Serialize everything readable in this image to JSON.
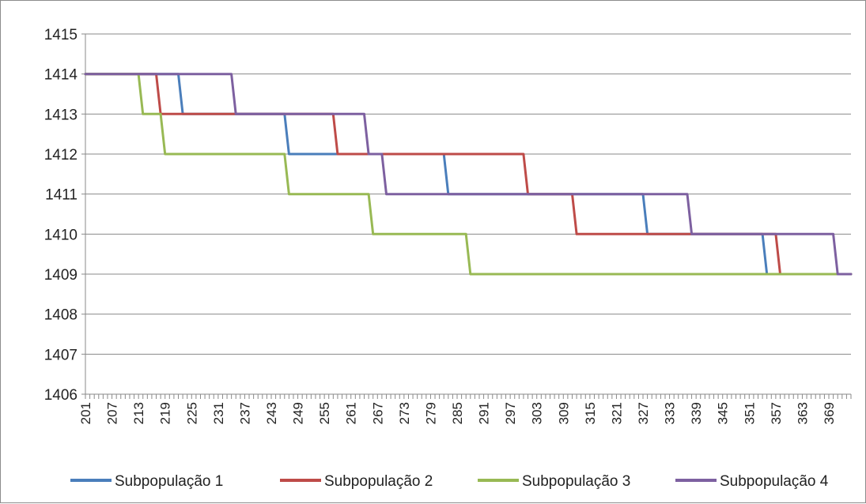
{
  "chart_data": {
    "type": "line",
    "title": "",
    "xlabel": "",
    "ylabel": "",
    "x_range": [
      201,
      374
    ],
    "x_tick_labels": [
      "201",
      "207",
      "213",
      "219",
      "225",
      "231",
      "237",
      "243",
      "249",
      "255",
      "261",
      "267",
      "273",
      "279",
      "285",
      "291",
      "297",
      "303",
      "309",
      "315",
      "321",
      "327",
      "333",
      "339",
      "345",
      "351",
      "357",
      "363",
      "369"
    ],
    "x_tick_values": [
      201,
      207,
      213,
      219,
      225,
      231,
      237,
      243,
      249,
      255,
      261,
      267,
      273,
      279,
      285,
      291,
      297,
      303,
      309,
      315,
      321,
      327,
      333,
      339,
      345,
      351,
      357,
      363,
      369
    ],
    "y_tick_labels": [
      "1406",
      "1407",
      "1408",
      "1409",
      "1410",
      "1411",
      "1412",
      "1413",
      "1414",
      "1415"
    ],
    "ylim": [
      1406,
      1415
    ],
    "grid": "horizontal",
    "legend_position": "bottom",
    "series": [
      {
        "name": "Subpopulação 1",
        "color": "#4a7ebb",
        "points": [
          [
            201,
            1414
          ],
          [
            222,
            1414
          ],
          [
            223,
            1413
          ],
          [
            238,
            1413
          ],
          [
            246,
            1413
          ],
          [
            247,
            1412
          ],
          [
            258,
            1412
          ],
          [
            282,
            1412
          ],
          [
            283,
            1411
          ],
          [
            327,
            1411
          ],
          [
            328,
            1410
          ],
          [
            354,
            1410
          ],
          [
            355,
            1409
          ],
          [
            374,
            1409
          ]
        ]
      },
      {
        "name": "Subpopulação 2",
        "color": "#be4b48",
        "points": [
          [
            201,
            1414
          ],
          [
            217,
            1414
          ],
          [
            218,
            1413
          ],
          [
            257,
            1413
          ],
          [
            258,
            1412
          ],
          [
            300,
            1412
          ],
          [
            301,
            1411
          ],
          [
            311,
            1411
          ],
          [
            312,
            1410
          ],
          [
            357,
            1410
          ],
          [
            358,
            1409
          ],
          [
            374,
            1409
          ]
        ]
      },
      {
        "name": "Subpopulação 3",
        "color": "#98b954",
        "points": [
          [
            201,
            1414
          ],
          [
            213,
            1414
          ],
          [
            214,
            1413
          ],
          [
            218,
            1413
          ],
          [
            219,
            1412
          ],
          [
            246,
            1412
          ],
          [
            247,
            1411
          ],
          [
            265,
            1411
          ],
          [
            266,
            1410
          ],
          [
            287,
            1410
          ],
          [
            288,
            1409
          ],
          [
            374,
            1409
          ]
        ]
      },
      {
        "name": "Subpopulação 4",
        "color": "#7d60a0",
        "points": [
          [
            201,
            1414
          ],
          [
            234,
            1414
          ],
          [
            235,
            1413
          ],
          [
            264,
            1413
          ],
          [
            265,
            1412
          ],
          [
            268,
            1412
          ],
          [
            269,
            1411
          ],
          [
            337,
            1411
          ],
          [
            338,
            1410
          ],
          [
            370,
            1410
          ],
          [
            371,
            1409
          ],
          [
            374,
            1409
          ]
        ]
      }
    ]
  }
}
